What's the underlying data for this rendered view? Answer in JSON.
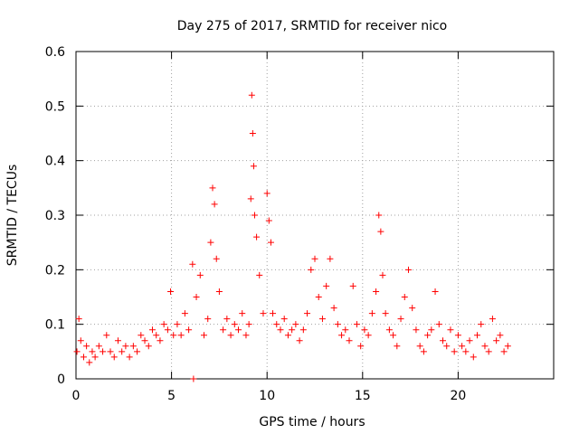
{
  "chart_data": {
    "type": "scatter",
    "title": "Day 275 of 2017, SRMTID for receiver nico",
    "xlabel": "GPS time / hours",
    "ylabel": "SRMTID / TECUs",
    "xlim": [
      0,
      25
    ],
    "ylim": [
      0,
      0.6
    ],
    "x_ticks": [
      0,
      5,
      10,
      15,
      20
    ],
    "x_tick_labels": [
      "0",
      "5",
      "10",
      "15",
      "20"
    ],
    "y_ticks": [
      0,
      0.1,
      0.2,
      0.3,
      0.4,
      0.5,
      0.6
    ],
    "y_tick_labels": [
      "0",
      "0.1",
      "0.2",
      "0.3",
      "0.4",
      "0.5",
      "0.6"
    ],
    "grid": true,
    "marker": "+",
    "color": "#ff0000",
    "series": [
      {
        "name": "SRMTID",
        "x": [
          0.05,
          0.15,
          0.25,
          0.4,
          0.55,
          0.7,
          0.85,
          1.0,
          1.2,
          1.4,
          1.6,
          1.8,
          2.0,
          2.2,
          2.4,
          2.6,
          2.8,
          3.0,
          3.2,
          3.4,
          3.6,
          3.8,
          4.0,
          4.2,
          4.4,
          4.6,
          4.8,
          4.95,
          5.1,
          5.3,
          5.5,
          5.7,
          5.9,
          6.1,
          6.3,
          6.5,
          6.7,
          6.9,
          7.05,
          7.15,
          7.25,
          7.35,
          7.5,
          7.7,
          7.9,
          8.1,
          8.3,
          8.5,
          8.7,
          8.9,
          9.05,
          9.15,
          9.2,
          9.25,
          9.3,
          9.35,
          9.45,
          9.6,
          9.8,
          10.0,
          10.1,
          10.2,
          10.3,
          10.5,
          10.7,
          10.9,
          11.1,
          11.3,
          11.5,
          11.7,
          11.9,
          12.1,
          12.3,
          12.5,
          12.7,
          12.9,
          13.1,
          13.3,
          13.5,
          13.7,
          13.9,
          14.1,
          14.3,
          14.5,
          14.7,
          14.9,
          15.1,
          15.3,
          15.5,
          15.7,
          15.85,
          15.95,
          16.05,
          16.2,
          16.4,
          16.6,
          16.8,
          17.0,
          17.2,
          17.4,
          17.6,
          17.8,
          18.0,
          18.2,
          18.4,
          18.6,
          18.8,
          19.0,
          19.2,
          19.4,
          19.6,
          19.8,
          20.0,
          20.2,
          20.4,
          20.6,
          20.8,
          21.0,
          21.2,
          21.4,
          21.6,
          21.8,
          22.0,
          22.2,
          22.4,
          22.6,
          6.15
        ],
        "y": [
          0.05,
          0.11,
          0.07,
          0.04,
          0.06,
          0.03,
          0.05,
          0.04,
          0.06,
          0.05,
          0.08,
          0.05,
          0.04,
          0.07,
          0.05,
          0.06,
          0.04,
          0.06,
          0.05,
          0.08,
          0.07,
          0.06,
          0.09,
          0.08,
          0.07,
          0.1,
          0.09,
          0.16,
          0.08,
          0.1,
          0.08,
          0.12,
          0.09,
          0.21,
          0.15,
          0.19,
          0.08,
          0.11,
          0.25,
          0.35,
          0.32,
          0.22,
          0.16,
          0.09,
          0.11,
          0.08,
          0.1,
          0.09,
          0.12,
          0.08,
          0.1,
          0.33,
          0.52,
          0.45,
          0.39,
          0.3,
          0.26,
          0.19,
          0.12,
          0.34,
          0.29,
          0.25,
          0.12,
          0.1,
          0.09,
          0.11,
          0.08,
          0.09,
          0.1,
          0.07,
          0.09,
          0.12,
          0.2,
          0.22,
          0.15,
          0.11,
          0.17,
          0.22,
          0.13,
          0.1,
          0.08,
          0.09,
          0.07,
          0.17,
          0.1,
          0.06,
          0.09,
          0.08,
          0.12,
          0.16,
          0.3,
          0.27,
          0.19,
          0.12,
          0.09,
          0.08,
          0.06,
          0.11,
          0.15,
          0.2,
          0.13,
          0.09,
          0.06,
          0.05,
          0.08,
          0.09,
          0.16,
          0.1,
          0.07,
          0.06,
          0.09,
          0.05,
          0.08,
          0.06,
          0.05,
          0.07,
          0.04,
          0.08,
          0.1,
          0.06,
          0.05,
          0.11,
          0.07,
          0.08,
          0.05,
          0.06,
          0.0
        ]
      }
    ]
  }
}
